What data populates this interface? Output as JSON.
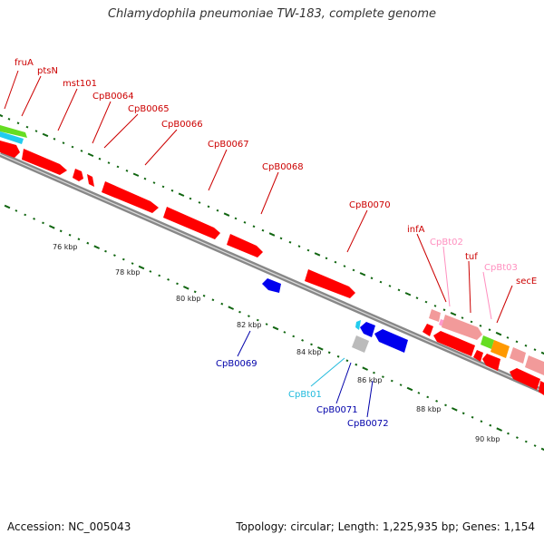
{
  "header": {
    "title": "Chlamydophila pneumoniae TW-183, complete genome"
  },
  "footer": {
    "accession": "Accession: NC_005043",
    "topology": "Topology: circular; Length: 1,225,935 bp; Genes: 1,154"
  },
  "colors": {
    "cds_red": "#ff0000",
    "cds_pink": "#f29a9a",
    "cds_blue": "#0000ee",
    "trna_pink": "#ff99cc",
    "trna_cyan": "#22ccee",
    "gray_feature": "#bbbbbb",
    "green_feature": "#66dd22",
    "orange_feature": "#ff9900",
    "backbone": "#888888",
    "tick_green": "#116611",
    "label_red": "#cc0000",
    "label_blue": "#0000aa",
    "label_pink": "#ff8fbf",
    "label_cyan": "#22bbdd"
  },
  "map": {
    "scale_labels": [
      "76 kbp",
      "78 kbp",
      "80 kbp",
      "82 kbp",
      "84 kbp",
      "86 kbp",
      "88 kbp",
      "90 kbp"
    ],
    "gene_labels_forward": [
      {
        "name": "fruA",
        "kind": "cds"
      },
      {
        "name": "ptsN",
        "kind": "cds"
      },
      {
        "name": "mst101",
        "kind": "cds"
      },
      {
        "name": "CpB0064",
        "kind": "cds"
      },
      {
        "name": "CpB0065",
        "kind": "cds"
      },
      {
        "name": "CpB0066",
        "kind": "cds"
      },
      {
        "name": "CpB0067",
        "kind": "cds"
      },
      {
        "name": "CpB0068",
        "kind": "cds"
      },
      {
        "name": "CpB0070",
        "kind": "cds"
      },
      {
        "name": "infA",
        "kind": "cds"
      },
      {
        "name": "CpBt02",
        "kind": "trna"
      },
      {
        "name": "tuf",
        "kind": "cds"
      },
      {
        "name": "CpBt03",
        "kind": "trna"
      },
      {
        "name": "secE",
        "kind": "cds"
      }
    ],
    "gene_labels_reverse": [
      {
        "name": "CpB0069",
        "kind": "cds"
      },
      {
        "name": "CpBt01",
        "kind": "trna_cyan"
      },
      {
        "name": "CpB0071",
        "kind": "cds"
      },
      {
        "name": "CpB0072",
        "kind": "cds"
      }
    ]
  }
}
